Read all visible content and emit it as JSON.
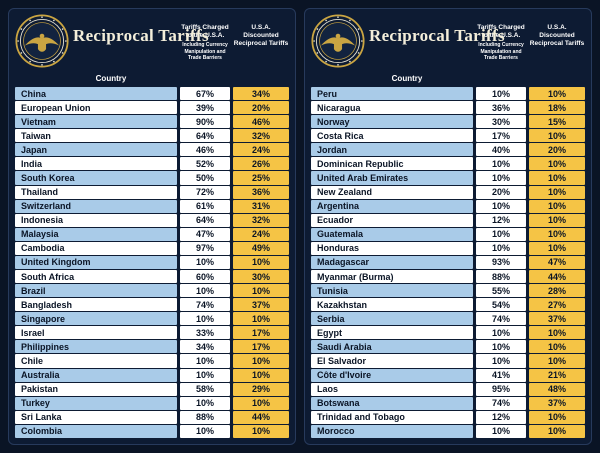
{
  "colors": {
    "background": "#0a1425",
    "panel": "#0d1b33",
    "gold_column": "#f5c445",
    "light_blue_row": "#a9cbe8",
    "title_text": "#f3eeda"
  },
  "panels": [
    {
      "title": "Reciprocal Tariffs",
      "headers": {
        "country": "Country",
        "charged_title": "Tariffs Charged to the U.S.A.",
        "charged_sub": "Including Currency Manipulation and Trade Barriers",
        "discounted_title": "U.S.A. Discounted Reciprocal Tariffs"
      },
      "rows": [
        {
          "country": "China",
          "charged": "67%",
          "discounted": "34%"
        },
        {
          "country": "European Union",
          "charged": "39%",
          "discounted": "20%"
        },
        {
          "country": "Vietnam",
          "charged": "90%",
          "discounted": "46%"
        },
        {
          "country": "Taiwan",
          "charged": "64%",
          "discounted": "32%"
        },
        {
          "country": "Japan",
          "charged": "46%",
          "discounted": "24%"
        },
        {
          "country": "India",
          "charged": "52%",
          "discounted": "26%"
        },
        {
          "country": "South Korea",
          "charged": "50%",
          "discounted": "25%"
        },
        {
          "country": "Thailand",
          "charged": "72%",
          "discounted": "36%"
        },
        {
          "country": "Switzerland",
          "charged": "61%",
          "discounted": "31%"
        },
        {
          "country": "Indonesia",
          "charged": "64%",
          "discounted": "32%"
        },
        {
          "country": "Malaysia",
          "charged": "47%",
          "discounted": "24%"
        },
        {
          "country": "Cambodia",
          "charged": "97%",
          "discounted": "49%"
        },
        {
          "country": "United Kingdom",
          "charged": "10%",
          "discounted": "10%"
        },
        {
          "country": "South Africa",
          "charged": "60%",
          "discounted": "30%"
        },
        {
          "country": "Brazil",
          "charged": "10%",
          "discounted": "10%"
        },
        {
          "country": "Bangladesh",
          "charged": "74%",
          "discounted": "37%"
        },
        {
          "country": "Singapore",
          "charged": "10%",
          "discounted": "10%"
        },
        {
          "country": "Israel",
          "charged": "33%",
          "discounted": "17%"
        },
        {
          "country": "Philippines",
          "charged": "34%",
          "discounted": "17%"
        },
        {
          "country": "Chile",
          "charged": "10%",
          "discounted": "10%"
        },
        {
          "country": "Australia",
          "charged": "10%",
          "discounted": "10%"
        },
        {
          "country": "Pakistan",
          "charged": "58%",
          "discounted": "29%"
        },
        {
          "country": "Turkey",
          "charged": "10%",
          "discounted": "10%"
        },
        {
          "country": "Sri Lanka",
          "charged": "88%",
          "discounted": "44%"
        },
        {
          "country": "Colombia",
          "charged": "10%",
          "discounted": "10%"
        }
      ]
    },
    {
      "title": "Reciprocal Tariffs",
      "headers": {
        "country": "Country",
        "charged_title": "Tariffs Charged to the U.S.A.",
        "charged_sub": "Including Currency Manipulation and Trade Barriers",
        "discounted_title": "U.S.A. Discounted Reciprocal Tariffs"
      },
      "rows": [
        {
          "country": "Peru",
          "charged": "10%",
          "discounted": "10%"
        },
        {
          "country": "Nicaragua",
          "charged": "36%",
          "discounted": "18%"
        },
        {
          "country": "Norway",
          "charged": "30%",
          "discounted": "15%"
        },
        {
          "country": "Costa Rica",
          "charged": "17%",
          "discounted": "10%"
        },
        {
          "country": "Jordan",
          "charged": "40%",
          "discounted": "20%"
        },
        {
          "country": "Dominican Republic",
          "charged": "10%",
          "discounted": "10%"
        },
        {
          "country": "United Arab Emirates",
          "charged": "10%",
          "discounted": "10%"
        },
        {
          "country": "New Zealand",
          "charged": "20%",
          "discounted": "10%"
        },
        {
          "country": "Argentina",
          "charged": "10%",
          "discounted": "10%"
        },
        {
          "country": "Ecuador",
          "charged": "12%",
          "discounted": "10%"
        },
        {
          "country": "Guatemala",
          "charged": "10%",
          "discounted": "10%"
        },
        {
          "country": "Honduras",
          "charged": "10%",
          "discounted": "10%"
        },
        {
          "country": "Madagascar",
          "charged": "93%",
          "discounted": "47%"
        },
        {
          "country": "Myanmar (Burma)",
          "charged": "88%",
          "discounted": "44%"
        },
        {
          "country": "Tunisia",
          "charged": "55%",
          "discounted": "28%"
        },
        {
          "country": "Kazakhstan",
          "charged": "54%",
          "discounted": "27%"
        },
        {
          "country": "Serbia",
          "charged": "74%",
          "discounted": "37%"
        },
        {
          "country": "Egypt",
          "charged": "10%",
          "discounted": "10%"
        },
        {
          "country": "Saudi Arabia",
          "charged": "10%",
          "discounted": "10%"
        },
        {
          "country": "El Salvador",
          "charged": "10%",
          "discounted": "10%"
        },
        {
          "country": "Côte d'Ivoire",
          "charged": "41%",
          "discounted": "21%"
        },
        {
          "country": "Laos",
          "charged": "95%",
          "discounted": "48%"
        },
        {
          "country": "Botswana",
          "charged": "74%",
          "discounted": "37%"
        },
        {
          "country": "Trinidad and Tobago",
          "charged": "12%",
          "discounted": "10%"
        },
        {
          "country": "Morocco",
          "charged": "10%",
          "discounted": "10%"
        }
      ]
    }
  ],
  "chart_data": [
    {
      "type": "table",
      "title": "Reciprocal Tariffs",
      "columns": [
        "Country",
        "Tariffs Charged to the U.S.A. Including Currency Manipulation and Trade Barriers",
        "U.S.A. Discounted Reciprocal Tariffs"
      ],
      "categories": [
        "China",
        "European Union",
        "Vietnam",
        "Taiwan",
        "Japan",
        "India",
        "South Korea",
        "Thailand",
        "Switzerland",
        "Indonesia",
        "Malaysia",
        "Cambodia",
        "United Kingdom",
        "South Africa",
        "Brazil",
        "Bangladesh",
        "Singapore",
        "Israel",
        "Philippines",
        "Chile",
        "Australia",
        "Pakistan",
        "Turkey",
        "Sri Lanka",
        "Colombia"
      ],
      "series": [
        {
          "name": "Tariffs Charged to the U.S.A. (%)",
          "values": [
            67,
            39,
            90,
            64,
            46,
            52,
            50,
            72,
            61,
            64,
            47,
            97,
            10,
            60,
            10,
            74,
            10,
            33,
            34,
            10,
            10,
            58,
            10,
            88,
            10
          ]
        },
        {
          "name": "U.S.A. Discounted Reciprocal Tariffs (%)",
          "values": [
            34,
            20,
            46,
            32,
            24,
            26,
            25,
            36,
            31,
            32,
            24,
            49,
            10,
            30,
            10,
            37,
            10,
            17,
            17,
            10,
            10,
            29,
            10,
            44,
            10
          ]
        }
      ]
    },
    {
      "type": "table",
      "title": "Reciprocal Tariffs",
      "columns": [
        "Country",
        "Tariffs Charged to the U.S.A. Including Currency Manipulation and Trade Barriers",
        "U.S.A. Discounted Reciprocal Tariffs"
      ],
      "categories": [
        "Peru",
        "Nicaragua",
        "Norway",
        "Costa Rica",
        "Jordan",
        "Dominican Republic",
        "United Arab Emirates",
        "New Zealand",
        "Argentina",
        "Ecuador",
        "Guatemala",
        "Honduras",
        "Madagascar",
        "Myanmar (Burma)",
        "Tunisia",
        "Kazakhstan",
        "Serbia",
        "Egypt",
        "Saudi Arabia",
        "El Salvador",
        "Côte d'Ivoire",
        "Laos",
        "Botswana",
        "Trinidad and Tobago",
        "Morocco"
      ],
      "series": [
        {
          "name": "Tariffs Charged to the U.S.A. (%)",
          "values": [
            10,
            36,
            30,
            17,
            40,
            10,
            10,
            20,
            10,
            12,
            10,
            10,
            93,
            88,
            55,
            54,
            74,
            10,
            10,
            10,
            41,
            95,
            74,
            12,
            10
          ]
        },
        {
          "name": "U.S.A. Discounted Reciprocal Tariffs (%)",
          "values": [
            10,
            18,
            15,
            10,
            20,
            10,
            10,
            10,
            10,
            10,
            10,
            10,
            47,
            44,
            28,
            27,
            37,
            10,
            10,
            10,
            21,
            48,
            37,
            10,
            10
          ]
        }
      ]
    }
  ]
}
